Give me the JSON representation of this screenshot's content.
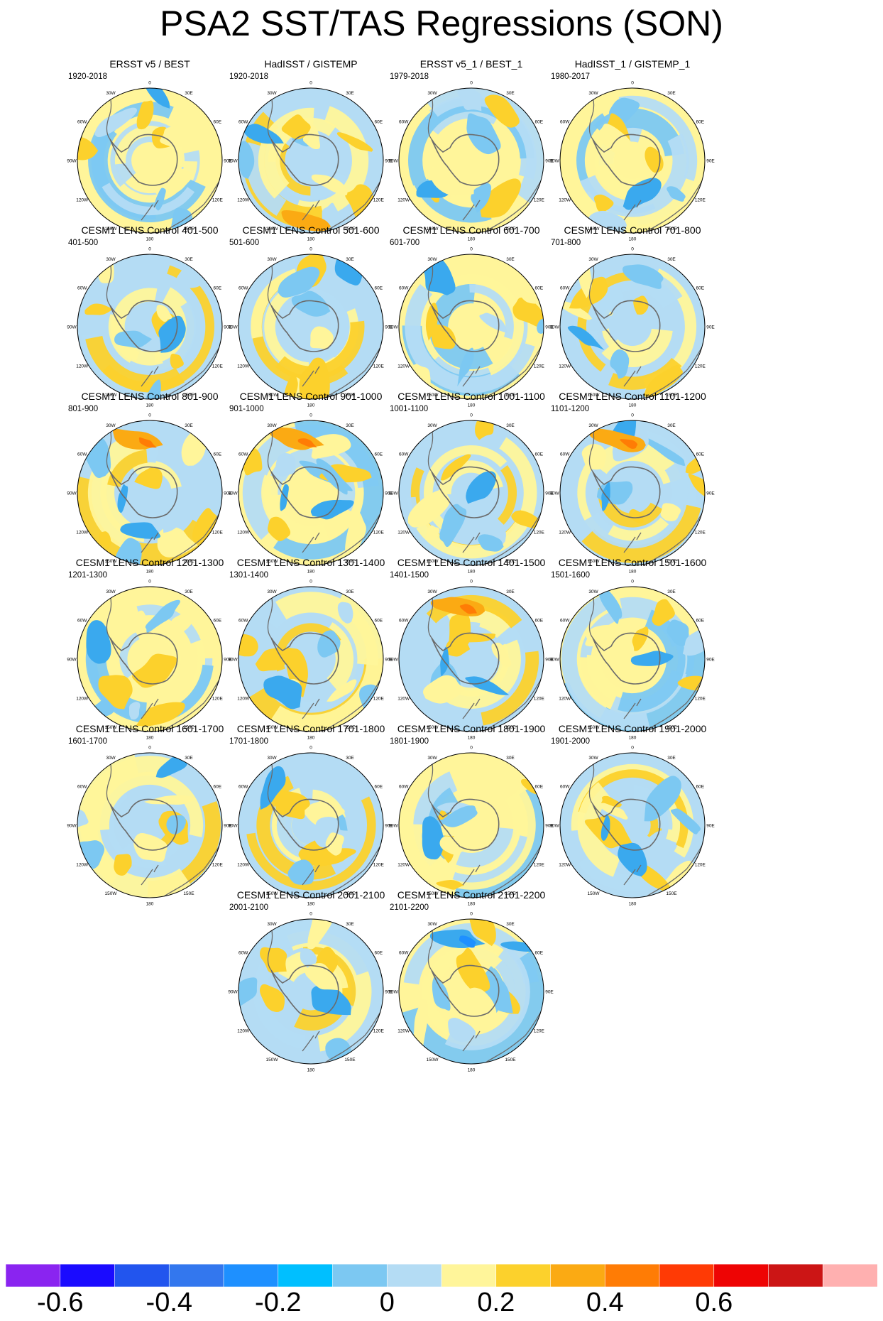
{
  "title": "PSA2 SST/TAS Regressions (SON)",
  "map_labels": {
    "top": "0",
    "top_right": "30E",
    "right_upper": "60E",
    "right": "90E",
    "right_lower": "120E",
    "bottom_right": "150E",
    "bottom": "180",
    "bottom_left": "150W",
    "left_lower": "120W",
    "left": "90W",
    "left_upper": "60W",
    "top_left": "30W"
  },
  "panels": [
    {
      "title": "ERSST v5 / BEST",
      "subtitle": "1920-2018"
    },
    {
      "title": "HadISST / GISTEMP",
      "subtitle": "1920-2018"
    },
    {
      "title": "ERSST v5_1 / BEST_1",
      "subtitle": "1979-2018"
    },
    {
      "title": "HadISST_1 / GISTEMP_1",
      "subtitle": "1980-2017"
    },
    {
      "title": "CESM1 LENS Control 401-500",
      "subtitle": "401-500"
    },
    {
      "title": "CESM1 LENS Control 501-600",
      "subtitle": "501-600"
    },
    {
      "title": "CESM1 LENS Control 601-700",
      "subtitle": "601-700"
    },
    {
      "title": "CESM1 LENS Control 701-800",
      "subtitle": "701-800"
    },
    {
      "title": "CESM1 LENS Control 801-900",
      "subtitle": "801-900"
    },
    {
      "title": "CESM1 LENS Control 901-1000",
      "subtitle": "901-1000"
    },
    {
      "title": "CESM1 LENS Control 1001-1100",
      "subtitle": "1001-1100"
    },
    {
      "title": "CESM1 LENS Control 1101-1200",
      "subtitle": "1101-1200"
    },
    {
      "title": "CESM1 LENS Control 1201-1300",
      "subtitle": "1201-1300"
    },
    {
      "title": "CESM1 LENS Control 1301-1400",
      "subtitle": "1301-1400"
    },
    {
      "title": "CESM1 LENS Control 1401-1500",
      "subtitle": "1401-1500"
    },
    {
      "title": "CESM1 LENS Control 1501-1600",
      "subtitle": "1501-1600"
    },
    {
      "title": "CESM1 LENS Control 1601-1700",
      "subtitle": "1601-1700"
    },
    {
      "title": "CESM1 LENS Control 1701-1800",
      "subtitle": "1701-1800"
    },
    {
      "title": "CESM1 LENS Control 1801-1900",
      "subtitle": "1801-1900"
    },
    {
      "title": "CESM1 LENS Control 1901-2000",
      "subtitle": "1901-2000"
    },
    {
      "title": "CESM1 LENS Control 2001-2100",
      "subtitle": "2001-2100"
    },
    {
      "title": "CESM1 LENS Control 2101-2200",
      "subtitle": "2101-2200"
    }
  ],
  "colorbar": {
    "colors": [
      "#8a24f0",
      "#1a0bff",
      "#2255ee",
      "#3377ee",
      "#1e90ff",
      "#00bfff",
      "#7cc8f2",
      "#b4dcf4",
      "#fff59a",
      "#fcd12c",
      "#fbaa13",
      "#ff7c05",
      "#ff3a05",
      "#ee0404",
      "#cc1515",
      "#ffb0b0"
    ],
    "labels": [
      "-0.6",
      "-0.4",
      "-0.2",
      "0",
      "0.2",
      "0.4",
      "0.6"
    ]
  },
  "palette": {
    "warm_light": "#fff59a",
    "warm": "#fcd12c",
    "warm_strong": "#fbaa13",
    "hot": "#ff7c05",
    "hotter": "#ff3a05",
    "cool_light": "#b4dcf4",
    "cool": "#7cc8f2",
    "cool_strong": "#3aa9ee",
    "coast": "#6b6b6b"
  }
}
